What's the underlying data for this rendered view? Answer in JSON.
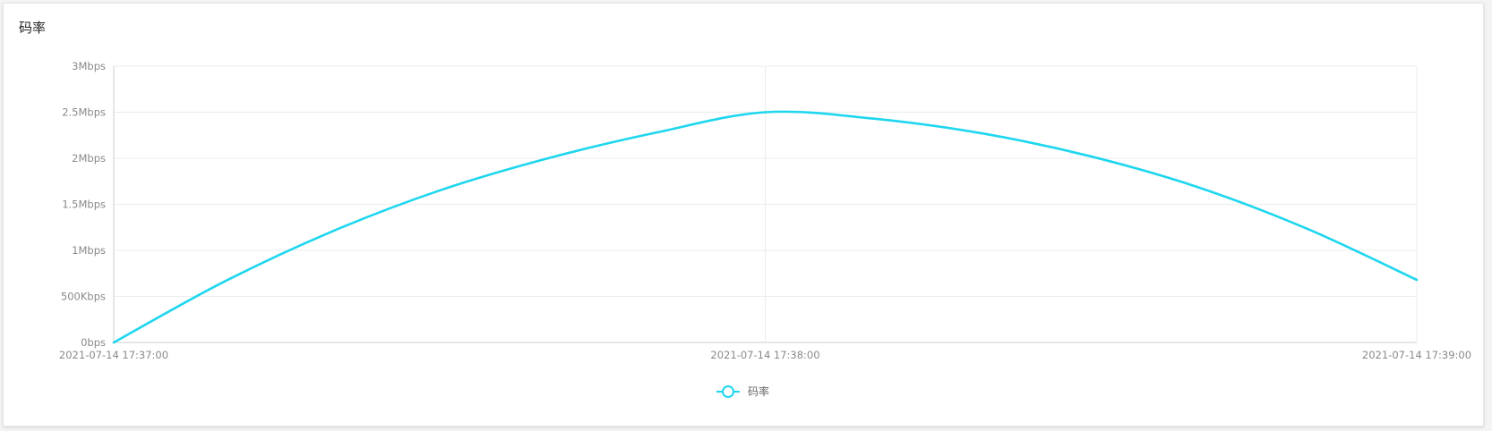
{
  "card": {
    "title": "码率"
  },
  "chart_data": {
    "type": "line",
    "title": "码率",
    "xlabel": "",
    "ylabel": "",
    "x_ticks": [
      "2021-07-14 17:37:00",
      "2021-07-14 17:38:00",
      "2021-07-14 17:39:00"
    ],
    "y_ticks": [
      "0bps",
      "500Kbps",
      "1Mbps",
      "1.5Mbps",
      "2Mbps",
      "2.5Mbps",
      "3Mbps"
    ],
    "ylim": [
      0,
      3
    ],
    "y_unit": "Mbps",
    "xlim_seconds": [
      0,
      120
    ],
    "grid": true,
    "legend_position": "bottom-center",
    "series": [
      {
        "name": "码率",
        "color": "#1fd6ef",
        "x_seconds": [
          0,
          10,
          20,
          30,
          40,
          50,
          60,
          70,
          80,
          90,
          100,
          110,
          120
        ],
        "values": [
          0.0,
          0.65,
          1.2,
          1.65,
          2.0,
          2.28,
          2.5,
          2.43,
          2.27,
          2.02,
          1.68,
          1.23,
          0.68
        ]
      }
    ]
  },
  "legend": {
    "items": [
      {
        "label": "码率",
        "icon": "circle-line-icon",
        "color": "#1fd6ef"
      }
    ]
  }
}
